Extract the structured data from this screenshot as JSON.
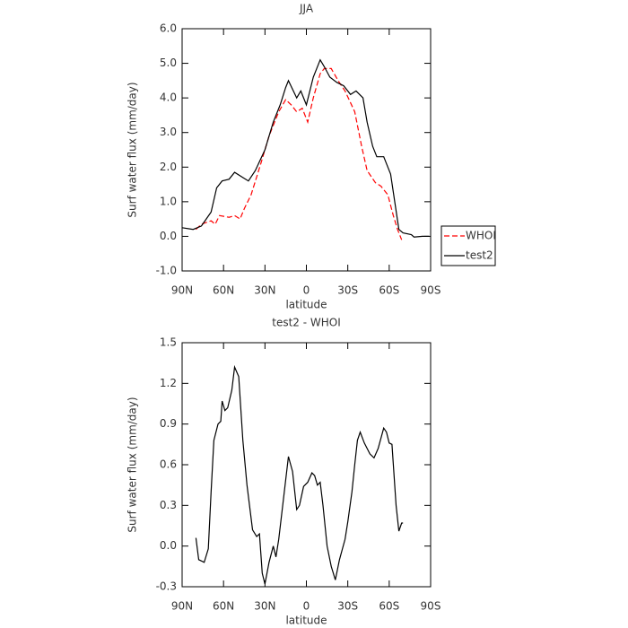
{
  "chart_data": [
    {
      "type": "line",
      "title": "JJA",
      "xlabel": "latitude",
      "ylabel": "Surf water flux (mm/day)",
      "xlim": [
        90,
        -90
      ],
      "xticks": [
        {
          "value": 90,
          "label": "90N"
        },
        {
          "value": 60,
          "label": "60N"
        },
        {
          "value": 30,
          "label": "30N"
        },
        0,
        {
          "value": -30,
          "label": "30S"
        },
        {
          "value": -60,
          "label": "60S"
        },
        {
          "value": -90,
          "label": "90S"
        }
      ],
      "ylim": [
        -1,
        6
      ],
      "yticks": [
        {
          "value": -1,
          "label": "-1.0"
        },
        {
          "value": 0,
          "label": "0.0"
        },
        {
          "value": 1,
          "label": "1.0"
        },
        {
          "value": 2,
          "label": "2.0"
        },
        {
          "value": 3,
          "label": "3.0"
        },
        {
          "value": 4,
          "label": "4.0"
        },
        {
          "value": 5,
          "label": "5.0"
        },
        {
          "value": 6,
          "label": "6.0"
        }
      ],
      "legend": "outside-right",
      "series": [
        {
          "name": "WHOI",
          "color": "#ff0000",
          "dash": true,
          "x": [
            80,
            76,
            69,
            66,
            63,
            56,
            52,
            48,
            45,
            40,
            33,
            27,
            20,
            15,
            11,
            7,
            3,
            -1,
            -5,
            -10,
            -13,
            -18,
            -23,
            -28,
            -35,
            -40,
            -44,
            -50,
            -54,
            -59,
            -63,
            -66,
            -69
          ],
          "values": [
            0.2,
            0.35,
            0.45,
            0.35,
            0.6,
            0.55,
            0.6,
            0.5,
            0.8,
            1.2,
            2.1,
            2.9,
            3.6,
            3.95,
            3.8,
            3.6,
            3.7,
            3.3,
            4.0,
            4.7,
            4.85,
            4.85,
            4.5,
            4.2,
            3.6,
            2.6,
            1.9,
            1.55,
            1.45,
            1.2,
            0.6,
            0.2,
            -0.1
          ]
        },
        {
          "name": "test2",
          "color": "#000000",
          "dash": false,
          "x": [
            90,
            82,
            76,
            69,
            65,
            61,
            56,
            52,
            46,
            42,
            37,
            30,
            24,
            19,
            15,
            13,
            7,
            4,
            0,
            -5,
            -10,
            -13,
            -17,
            -22,
            -27,
            -32,
            -36,
            -41,
            -44,
            -48,
            -51,
            -56,
            -61,
            -64,
            -67,
            -70,
            -76,
            -78,
            -84,
            -89
          ],
          "values": [
            0.25,
            0.2,
            0.3,
            0.7,
            1.4,
            1.6,
            1.65,
            1.85,
            1.7,
            1.6,
            1.9,
            2.5,
            3.3,
            3.8,
            4.3,
            4.5,
            4.0,
            4.2,
            3.8,
            4.6,
            5.1,
            4.9,
            4.6,
            4.45,
            4.35,
            4.1,
            4.2,
            4.0,
            3.3,
            2.6,
            2.3,
            2.3,
            1.8,
            1.0,
            0.2,
            0.1,
            0.05,
            -0.02,
            0.0,
            0.0
          ]
        }
      ]
    },
    {
      "type": "line",
      "title": "test2 - WHOI",
      "xlabel": "latitude",
      "ylabel": "Surf water flux (mm/day)",
      "xlim": [
        90,
        -90
      ],
      "xticks": [
        {
          "value": 90,
          "label": "90N"
        },
        {
          "value": 60,
          "label": "60N"
        },
        {
          "value": 30,
          "label": "30N"
        },
        0,
        {
          "value": -30,
          "label": "30S"
        },
        {
          "value": -60,
          "label": "60S"
        },
        {
          "value": -90,
          "label": "90S"
        }
      ],
      "ylim": [
        -0.3,
        1.5
      ],
      "yticks": [
        -0.3,
        {
          "value": 0,
          "label": "0.0"
        },
        0.3,
        0.6,
        0.9,
        1.2,
        1.5
      ],
      "series": [
        {
          "color": "#000000",
          "dash": false,
          "x": [
            80,
            78,
            74,
            71,
            69,
            67,
            64,
            62,
            61,
            59,
            57,
            54,
            52,
            49,
            46,
            43,
            39,
            36,
            34,
            32,
            30,
            27,
            24,
            22,
            20,
            16,
            13,
            10,
            7,
            5,
            2,
            -1,
            -4,
            -6,
            -8,
            -10,
            -12,
            -15,
            -18,
            -21,
            -24,
            -28,
            -30,
            -33,
            -35,
            -37,
            -39,
            -42,
            -46,
            -49,
            -52,
            -56,
            -58,
            -60,
            -62,
            -65,
            -67,
            -69,
            -70
          ],
          "values": [
            0.06,
            -0.1,
            -0.12,
            -0.02,
            0.4,
            0.78,
            0.9,
            0.92,
            1.07,
            1.0,
            1.02,
            1.15,
            1.32,
            1.25,
            0.78,
            0.45,
            0.12,
            0.07,
            0.09,
            -0.2,
            -0.28,
            -0.12,
            0.0,
            -0.08,
            0.05,
            0.4,
            0.66,
            0.55,
            0.27,
            0.3,
            0.44,
            0.47,
            0.54,
            0.52,
            0.45,
            0.47,
            0.3,
            0.0,
            -0.15,
            -0.25,
            -0.1,
            0.05,
            0.18,
            0.4,
            0.6,
            0.78,
            0.84,
            0.76,
            0.68,
            0.65,
            0.72,
            0.87,
            0.84,
            0.76,
            0.75,
            0.3,
            0.11,
            0.17,
            0.17
          ]
        }
      ]
    }
  ]
}
